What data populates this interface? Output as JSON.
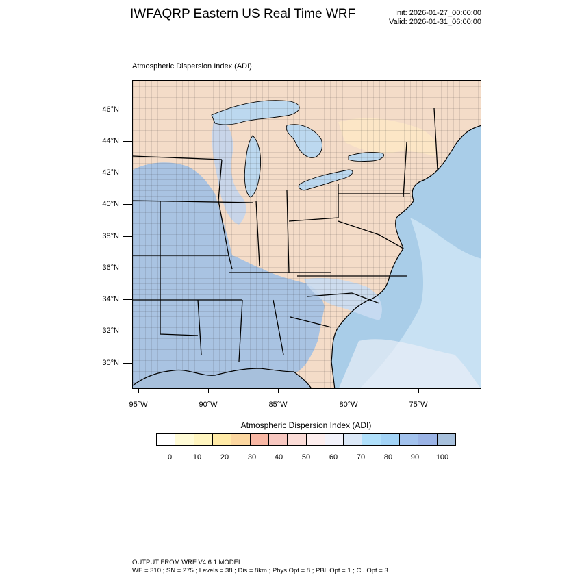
{
  "header": {
    "title": "IWFAQRP Eastern US Real Time WRF",
    "init": "Init: 2026-01-27_00:00:00",
    "valid": "Valid: 2026-01-31_06:00:00"
  },
  "map": {
    "subtitle": "Atmospheric Dispersion Index   (ADI)",
    "lat_labels": [
      "46°N",
      "44°N",
      "42°N",
      "40°N",
      "38°N",
      "36°N",
      "34°N",
      "32°N",
      "30°N"
    ],
    "lon_labels": [
      "95°W",
      "90°W",
      "85°W",
      "80°W",
      "75°W"
    ],
    "colors": {
      "ocean": "#a9cde8",
      "gulf": "#a7c0dc",
      "lake": "#bcd8ef",
      "land_warm": "#f7d9c6",
      "land_cool": "#b3c7e2"
    }
  },
  "legend": {
    "title": "Atmospheric Dispersion Index  (ADI)",
    "labels": [
      "0",
      "10",
      "20",
      "30",
      "40",
      "50",
      "60",
      "70",
      "80",
      "90",
      "100"
    ],
    "colors": [
      "#ffffff",
      "#fffbd6",
      "#fff5bf",
      "#ffeaa6",
      "#fcd7a0",
      "#f8b7a4",
      "#f7c7c0",
      "#fbdcd7",
      "#fdeeee",
      "#f2f2fa",
      "#dbe8f7",
      "#b0e0fb",
      "#a2d3f6",
      "#a2c2ed",
      "#9ab3e5",
      "#a7c0dc"
    ]
  },
  "footer": {
    "line1": "OUTPUT FROM WRF V4.6.1 MODEL",
    "line2": "WE = 310 ; SN = 275 ; Levels = 38 ; Dis = 8km ; Phys Opt = 8 ; PBL Opt = 1 ; Cu Opt = 3"
  }
}
